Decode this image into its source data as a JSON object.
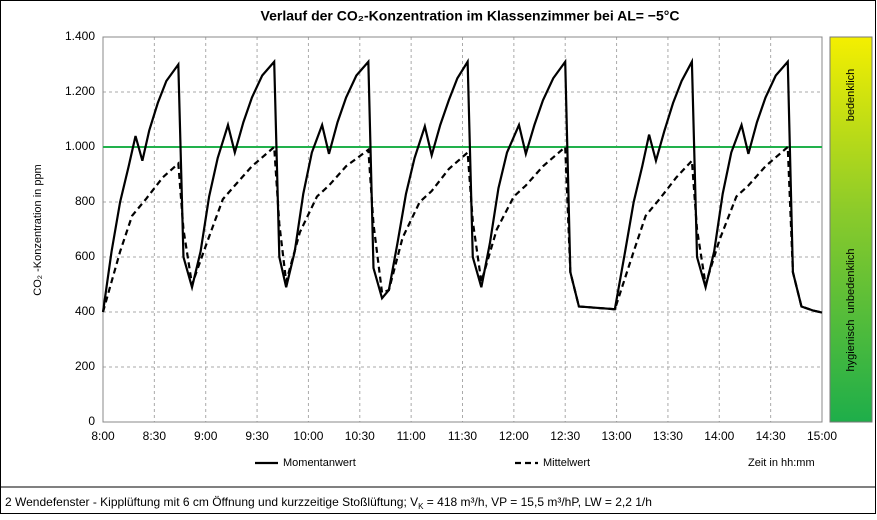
{
  "chart_data": {
    "type": "line",
    "title": "Verlauf der CO₂-Konzentration im Klassenzimmer bei AL= −5°C",
    "ylabel": "CO₂ -Konzentration in ppm",
    "xlabel": "Zeit in hh:mm",
    "xlim": [
      "8:00",
      "15:00"
    ],
    "xticks": [
      "8:00",
      "8:30",
      "9:00",
      "9:30",
      "10:00",
      "10:30",
      "11:00",
      "11:30",
      "12:00",
      "12:30",
      "13:00",
      "13:30",
      "14:00",
      "14:30",
      "15:00"
    ],
    "ylim": [
      0,
      1400
    ],
    "yticks": [
      0,
      200,
      400,
      600,
      800,
      {
        "value": 1000,
        "label": "1.000"
      },
      {
        "value": 1200,
        "label": "1.200"
      },
      {
        "value": 1400,
        "label": "1.400"
      }
    ],
    "grid": true,
    "threshold": {
      "value": 1000,
      "color": "#22b14c"
    },
    "zones": {
      "upper": "bedenklich",
      "lower": "hygienisch  unbedenklich"
    },
    "series": [
      {
        "name": "Momentanwert",
        "color": "#000000",
        "dash": "solid",
        "x": [
          "8:00",
          "8:05",
          "8:10",
          "8:15",
          "8:19",
          "8:23",
          "8:27",
          "8:32",
          "8:37",
          "8:44",
          "8:47",
          "8:52",
          "8:57",
          "9:02",
          "9:07",
          "9:13",
          "9:17",
          "9:22",
          "9:27",
          "9:33",
          "9:40",
          "9:43",
          "9:47",
          "9:52",
          "9:57",
          "10:02",
          "10:08",
          "10:12",
          "10:17",
          "10:22",
          "10:28",
          "10:35",
          "10:38",
          "10:43",
          "10:47",
          "10:52",
          "10:57",
          "11:02",
          "11:08",
          "11:12",
          "11:17",
          "11:22",
          "11:27",
          "11:33",
          "11:36",
          "11:41",
          "11:46",
          "11:51",
          "11:56",
          "12:03",
          "12:07",
          "12:12",
          "12:17",
          "12:23",
          "12:30",
          "12:33",
          "12:38",
          "12:59",
          "13:05",
          "13:10",
          "13:15",
          "13:19",
          "13:23",
          "13:28",
          "13:33",
          "13:38",
          "13:44",
          "13:47",
          "13:52",
          "13:57",
          "14:02",
          "14:07",
          "14:13",
          "14:17",
          "14:22",
          "14:27",
          "14:33",
          "14:40",
          "14:43",
          "14:48",
          "14:55",
          "15:00"
        ],
        "values": [
          400,
          620,
          800,
          930,
          1040,
          950,
          1060,
          1160,
          1240,
          1300,
          600,
          490,
          620,
          820,
          960,
          1080,
          980,
          1090,
          1180,
          1260,
          1310,
          600,
          490,
          620,
          830,
          980,
          1080,
          975,
          1090,
          1180,
          1260,
          1310,
          560,
          450,
          480,
          650,
          830,
          960,
          1075,
          970,
          1080,
          1170,
          1250,
          1310,
          600,
          490,
          650,
          850,
          980,
          1080,
          975,
          1080,
          1170,
          1250,
          1310,
          545,
          420,
          410,
          620,
          800,
          930,
          1045,
          950,
          1060,
          1160,
          1240,
          1310,
          600,
          490,
          620,
          830,
          980,
          1080,
          975,
          1090,
          1180,
          1260,
          1310,
          545,
          420,
          405,
          398
        ]
      },
      {
        "name": "Mittelwert",
        "color": "#000000",
        "dash": "dashed",
        "x": [
          "8:00",
          "8:10",
          "8:17",
          "8:25",
          "8:35",
          "8:44",
          "8:47",
          "8:52",
          "9:00",
          "9:10",
          "9:17",
          "9:27",
          "9:40",
          "9:43",
          "9:47",
          "9:55",
          "10:05",
          "10:12",
          "10:22",
          "10:35",
          "10:38",
          "10:43",
          "10:47",
          "10:55",
          "11:05",
          "11:12",
          "11:22",
          "11:33",
          "11:36",
          "11:41",
          "11:50",
          "12:00",
          "12:07",
          "12:17",
          "12:30",
          "12:33",
          "12:38",
          "12:59",
          "13:10",
          "13:17",
          "13:25",
          "13:35",
          "13:44",
          "13:47",
          "13:52",
          "14:00",
          "14:10",
          "14:17",
          "14:27",
          "14:40",
          "14:43",
          "14:48",
          "14:55",
          "15:00"
        ],
        "values": [
          400,
          620,
          750,
          810,
          890,
          940,
          700,
          500,
          640,
          810,
          860,
          930,
          1000,
          720,
          510,
          690,
          820,
          860,
          930,
          990,
          720,
          470,
          480,
          670,
          800,
          840,
          920,
          980,
          730,
          510,
          700,
          820,
          860,
          930,
          1000,
          545,
          420,
          410,
          620,
          750,
          810,
          890,
          950,
          700,
          500,
          660,
          820,
          860,
          930,
          1000,
          545,
          420,
          405,
          398
        ]
      }
    ],
    "footnote": {
      "before": "2 Wendefenster - Kipplüftung mit 6 cm Öffnung und kurzzeitige Stoßlüftung; V",
      "sub": "K",
      "after": " = 418 m³/h, VP = 15,5 m³/hP, LW = 2,2 1/h"
    }
  }
}
